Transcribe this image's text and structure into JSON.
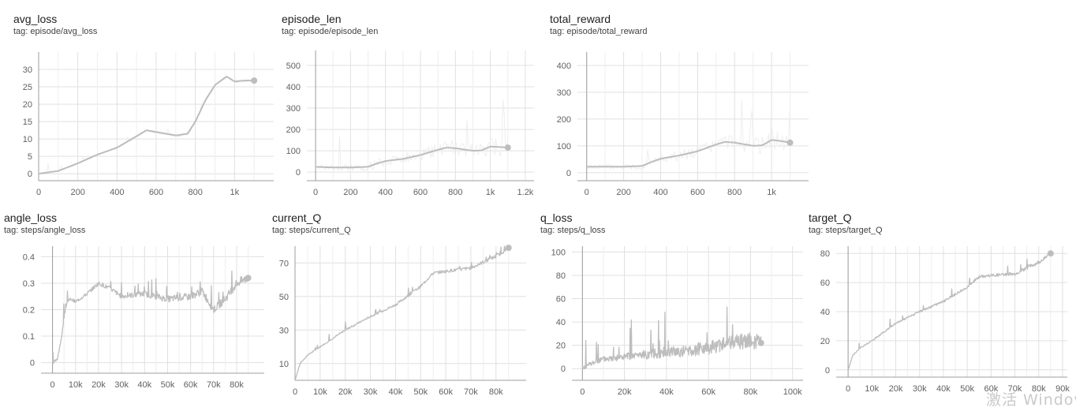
{
  "colors": {
    "line": "#bdbdbd",
    "raw": "#eeeeee",
    "grid": "#e0e0e0",
    "axis": "#9e9e9e",
    "tick": "#616161"
  },
  "watermark": "激活 Windov",
  "chart_data": [
    {
      "type": "line",
      "title": "avg_loss",
      "tag": "tag: episode/avg_loss",
      "xlim": [
        0,
        1200
      ],
      "ylim": [
        -2,
        35
      ],
      "xticks": [
        0,
        200,
        400,
        600,
        800,
        1000
      ],
      "xtick_labels": [
        "0",
        "200",
        "400",
        "600",
        "800",
        "1k"
      ],
      "yticks": [
        0,
        5,
        10,
        15,
        20,
        25,
        30
      ],
      "ytick_labels": [
        "0",
        "5",
        "10",
        "15",
        "20",
        "25",
        "30"
      ],
      "raw_band": true,
      "noise": 0.4,
      "grid": true,
      "series": [
        {
          "x": [
            0,
            100,
            200,
            300,
            400,
            500,
            550,
            600,
            700,
            760,
            800,
            850,
            900,
            960,
            1000,
            1050,
            1100
          ],
          "y": [
            0,
            0.8,
            3,
            5.5,
            7.5,
            10.8,
            12.5,
            12,
            11,
            11.5,
            15,
            21,
            25.5,
            28,
            26.5,
            26.8,
            26.8
          ]
        }
      ]
    },
    {
      "type": "line",
      "title": "episode_len",
      "tag": "tag: episode/episode_len",
      "xlim": [
        -50,
        1250
      ],
      "ylim": [
        -40,
        570
      ],
      "xticks": [
        0,
        200,
        400,
        600,
        800,
        1000,
        1200
      ],
      "xtick_labels": [
        "0",
        "200",
        "400",
        "600",
        "800",
        "1k",
        "1.2k"
      ],
      "yticks": [
        0,
        100,
        200,
        300,
        400,
        500
      ],
      "ytick_labels": [
        "0",
        "100",
        "200",
        "300",
        "400",
        "500"
      ],
      "raw_band": true,
      "noise": 1.8,
      "grid": true,
      "series": [
        {
          "x": [
            0,
            100,
            200,
            300,
            350,
            400,
            500,
            600,
            700,
            750,
            800,
            900,
            950,
            1000,
            1050,
            1100
          ],
          "y": [
            25,
            22,
            22,
            25,
            40,
            52,
            62,
            80,
            105,
            115,
            112,
            100,
            102,
            120,
            118,
            115
          ]
        }
      ]
    },
    {
      "type": "line",
      "title": "total_reward",
      "tag": "tag: episode/total_reward",
      "xlim": [
        -50,
        1200
      ],
      "ylim": [
        -30,
        450
      ],
      "xticks": [
        0,
        200,
        400,
        600,
        800,
        1000
      ],
      "xtick_labels": [
        "0",
        "200",
        "400",
        "600",
        "800",
        "1k"
      ],
      "yticks": [
        0,
        100,
        200,
        300,
        400
      ],
      "ytick_labels": [
        "0",
        "100",
        "200",
        "300",
        "400"
      ],
      "raw_band": true,
      "noise": 1.8,
      "grid": true,
      "series": [
        {
          "x": [
            0,
            100,
            200,
            300,
            350,
            400,
            500,
            600,
            700,
            750,
            800,
            900,
            950,
            1000,
            1050,
            1100
          ],
          "y": [
            22,
            22,
            22,
            25,
            40,
            52,
            64,
            80,
            105,
            115,
            112,
            100,
            102,
            122,
            118,
            112
          ]
        }
      ]
    },
    {
      "type": "line",
      "title": "angle_loss",
      "tag": "tag: steps/angle_loss",
      "xlim": [
        -5000,
        92000
      ],
      "ylim": [
        -0.04,
        0.44
      ],
      "xticks": [
        0,
        10000,
        20000,
        30000,
        40000,
        50000,
        60000,
        70000,
        80000
      ],
      "xtick_labels": [
        "0",
        "10k",
        "20k",
        "30k",
        "40k",
        "50k",
        "60k",
        "70k",
        "80k"
      ],
      "yticks": [
        0,
        0.1,
        0.2,
        0.3,
        0.4
      ],
      "ytick_labels": [
        "0",
        "0.1",
        "0.2",
        "0.3",
        "0.4"
      ],
      "raw_band": false,
      "noise": 0.9,
      "grid": true,
      "series": [
        {
          "x": [
            0,
            2000,
            4000,
            5000,
            6000,
            8000,
            10000,
            15000,
            20000,
            25000,
            30000,
            40000,
            50000,
            60000,
            65000,
            70000,
            75000,
            80000,
            85000
          ],
          "y": [
            0,
            0.01,
            0.1,
            0.17,
            0.22,
            0.24,
            0.23,
            0.26,
            0.3,
            0.28,
            0.25,
            0.26,
            0.24,
            0.25,
            0.27,
            0.2,
            0.24,
            0.3,
            0.32
          ]
        }
      ]
    },
    {
      "type": "line",
      "title": "current_Q",
      "tag": "tag: steps/current_Q",
      "xlim": [
        0,
        92000
      ],
      "ylim": [
        0,
        80
      ],
      "xticks": [
        0,
        10000,
        20000,
        30000,
        40000,
        50000,
        60000,
        70000,
        80000
      ],
      "xtick_labels": [
        "0",
        "10k",
        "20k",
        "30k",
        "40k",
        "50k",
        "60k",
        "70k",
        "80k"
      ],
      "yticks": [
        10,
        30,
        50,
        70
      ],
      "ytick_labels": [
        "10",
        "30",
        "50",
        "70"
      ],
      "raw_band": false,
      "noise": 0.35,
      "grid": true,
      "series": [
        {
          "x": [
            0,
            2000,
            5000,
            10000,
            20000,
            30000,
            40000,
            50000,
            55000,
            60000,
            70000,
            80000,
            85000
          ],
          "y": [
            0,
            10,
            15,
            20,
            30,
            38,
            45,
            56,
            64,
            65,
            67,
            74,
            79
          ]
        }
      ]
    },
    {
      "type": "line",
      "title": "q_loss",
      "tag": "tag: steps/q_loss",
      "xlim": [
        -5000,
        105000
      ],
      "ylim": [
        -10,
        105
      ],
      "xticks": [
        0,
        20000,
        40000,
        60000,
        80000,
        100000
      ],
      "xtick_labels": [
        "0",
        "20k",
        "40k",
        "60k",
        "80k",
        "100k"
      ],
      "yticks": [
        0,
        20,
        40,
        60,
        80,
        100
      ],
      "ytick_labels": [
        "0",
        "20",
        "40",
        "60",
        "80",
        "100"
      ],
      "raw_band": false,
      "noise": 1.6,
      "grid": true,
      "series": [
        {
          "x": [
            0,
            5000,
            10000,
            20000,
            30000,
            40000,
            50000,
            60000,
            70000,
            80000,
            85000
          ],
          "y": [
            0,
            5,
            8,
            10,
            12,
            14,
            15,
            18,
            22,
            24,
            22
          ]
        }
      ]
    },
    {
      "type": "line",
      "title": "target_Q",
      "tag": "tag: steps/target_Q",
      "xlim": [
        -5000,
        92000
      ],
      "ylim": [
        -5,
        85
      ],
      "xticks": [
        0,
        10000,
        20000,
        30000,
        40000,
        50000,
        60000,
        70000,
        80000,
        90000
      ],
      "xtick_labels": [
        "0",
        "10k",
        "20k",
        "30k",
        "40k",
        "50k",
        "60k",
        "70k",
        "80k",
        "90k"
      ],
      "yticks": [
        0,
        20,
        40,
        60,
        80
      ],
      "ytick_labels": [
        "0",
        "20",
        "40",
        "60",
        "80"
      ],
      "raw_band": false,
      "noise": 0.35,
      "grid": true,
      "series": [
        {
          "x": [
            0,
            2000,
            5000,
            10000,
            20000,
            30000,
            40000,
            50000,
            55000,
            60000,
            70000,
            80000,
            85000
          ],
          "y": [
            0,
            10,
            15,
            20,
            32,
            40,
            47,
            57,
            64,
            65,
            66,
            74,
            80
          ]
        }
      ]
    }
  ]
}
